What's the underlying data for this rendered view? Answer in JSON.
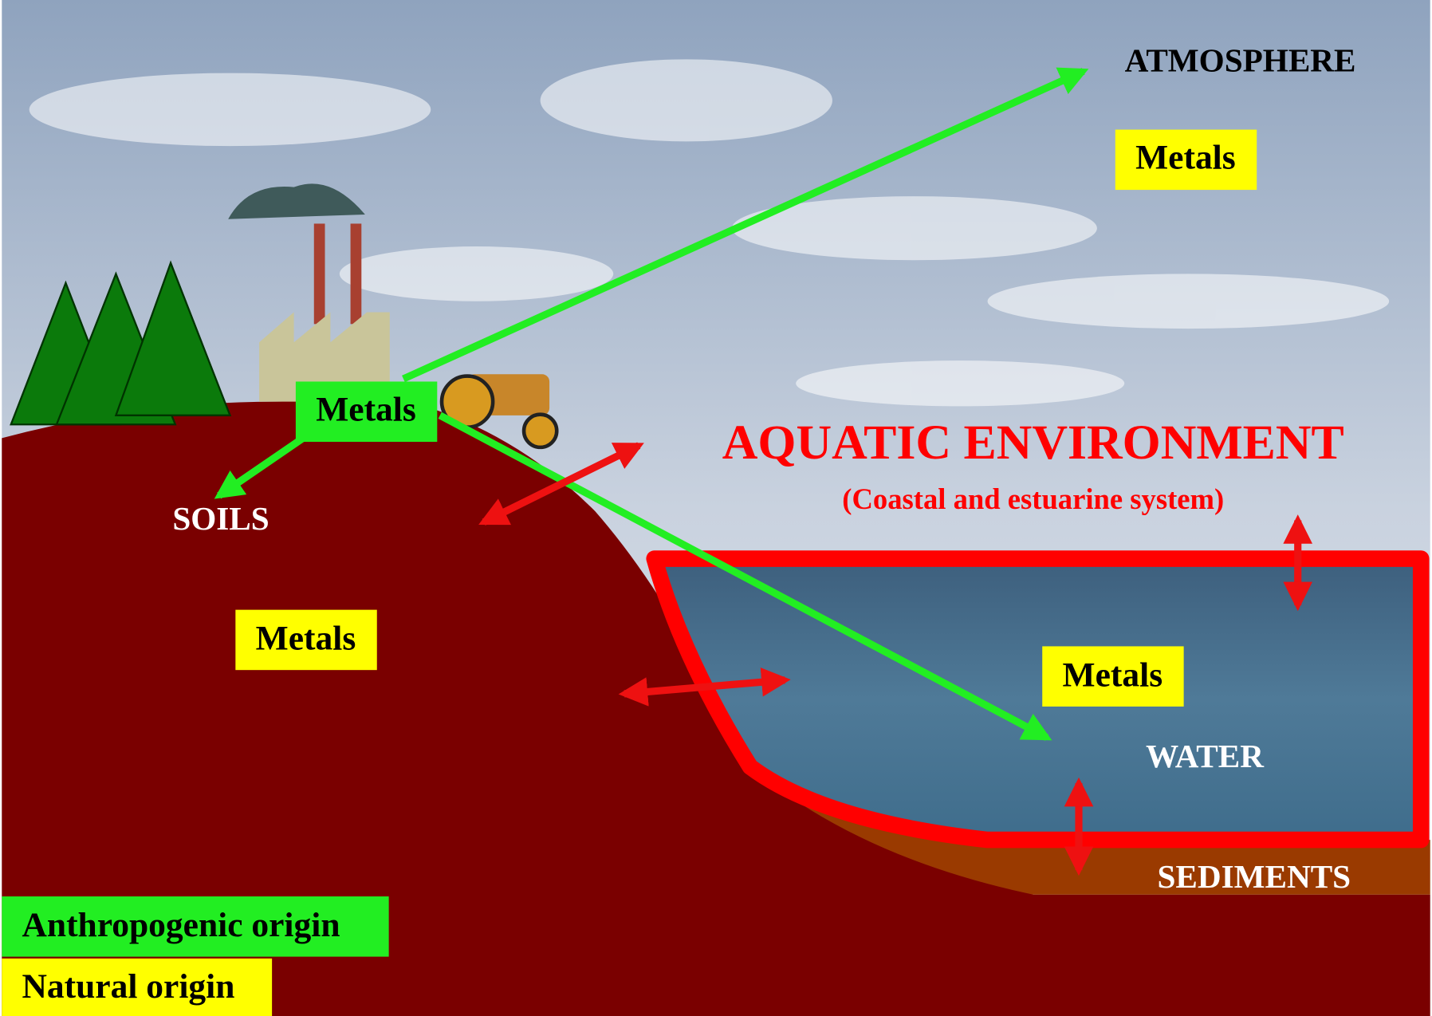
{
  "atmosphere": {
    "label": "ATMOSPHERE",
    "metals": "Metals"
  },
  "source": {
    "metals": "Metals"
  },
  "soils": {
    "label": "SOILS",
    "metals": "Metals"
  },
  "aquatic": {
    "title": "AQUATIC ENVIRONMENT",
    "subtitle": "(Coastal and estuarine system)",
    "metals": "Metals",
    "water": "WATER",
    "sediments": "SEDIMENTS"
  },
  "legend": {
    "anthropogenic": "Anthropogenic origin",
    "natural": "Natural origin"
  }
}
